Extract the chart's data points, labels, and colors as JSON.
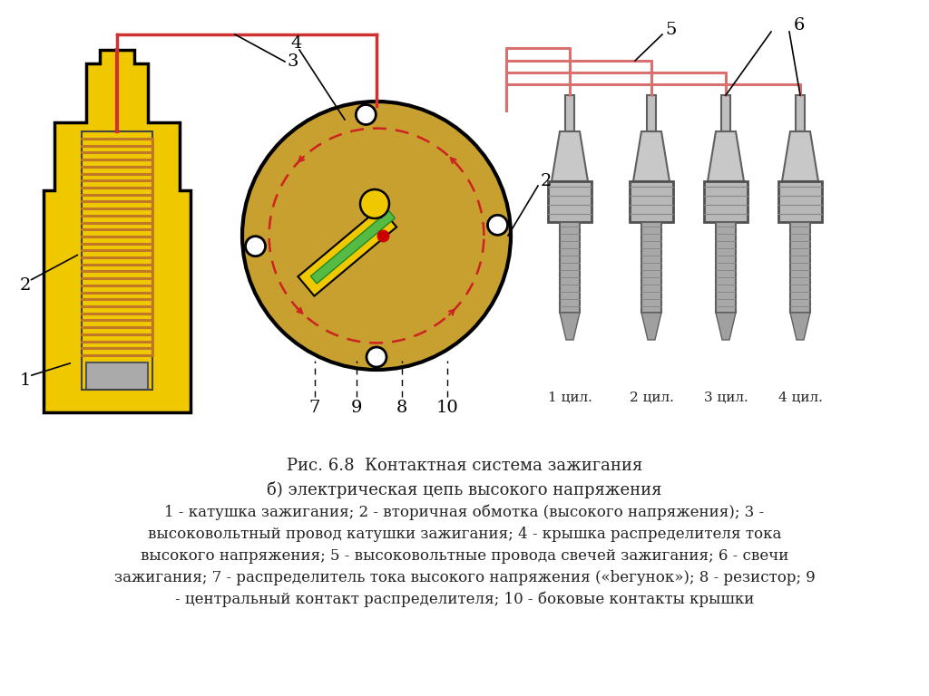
{
  "bg_color": "#ffffff",
  "title_line1": "Рис. 6.8  Контактная система зажигания",
  "title_line2": "б) электрическая цепь высокого напряжения",
  "desc_line1": "1 - катушка зажигания; 2 - вторичная обмотка (высокого напряжения); 3 -",
  "desc_line2": "высоковольтный провод катушки зажигания; 4 - крышка распределителя тока",
  "desc_line3": "высокого напряжения; 5 - высоковольтные провода свечей зажигания; 6 - свечи",
  "desc_line4": "зажигания; 7 - распределитель тока высокого напряжения («bегунок»); 8 - резистор; 9",
  "desc_line5": "- центральный контакт распределителя; 10 - боковые контакты крышки",
  "coil_yellow": "#f0c800",
  "coil_outline": "#000000",
  "winding_color": "#c07828",
  "distributor_color": "#c8a030",
  "wire_red": "#d03030",
  "wire_pink": "#d87070",
  "text_color": "#222222"
}
